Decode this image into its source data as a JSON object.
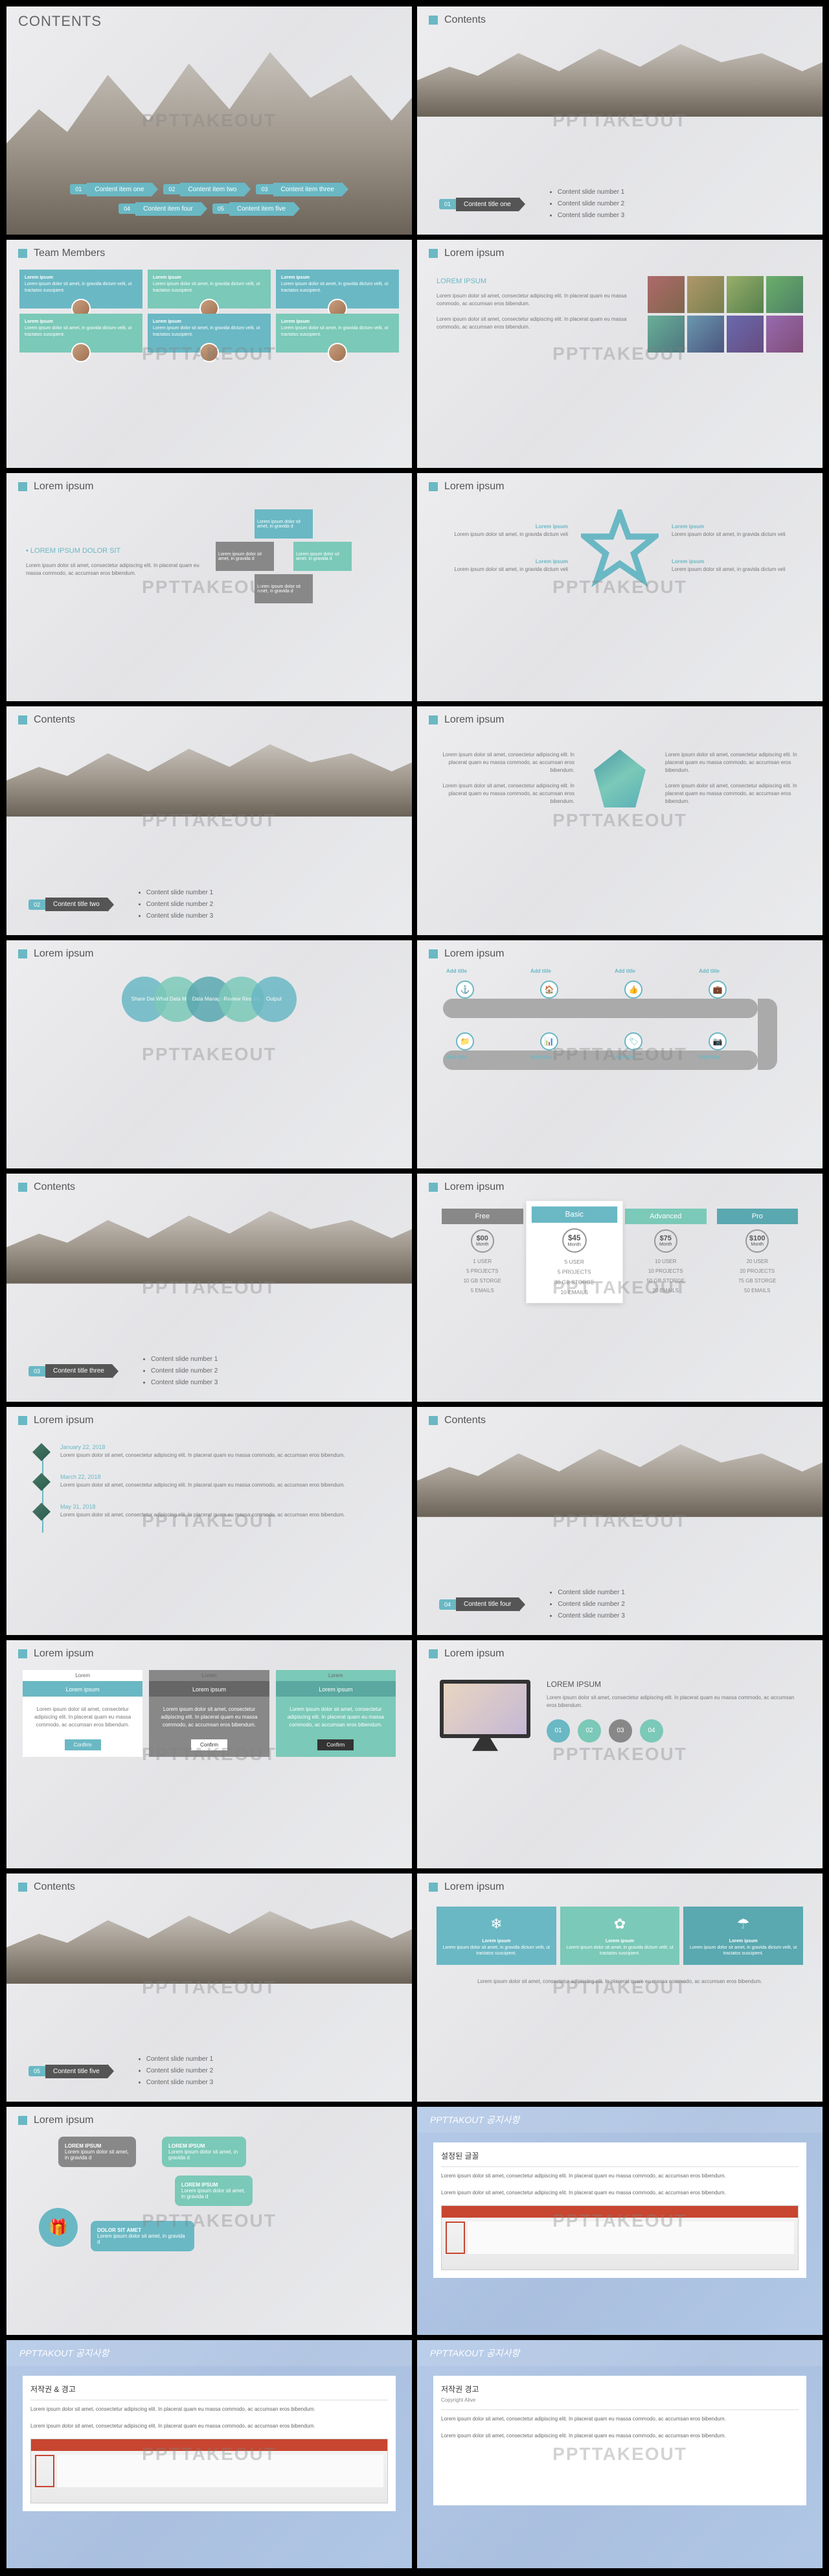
{
  "watermark": "PPTTAKEOUT",
  "colors": {
    "teal": "#6ab8c4",
    "mint": "#7bc9b8",
    "gray": "#888888",
    "dark": "#555555",
    "blue": "#5a8fd8"
  },
  "lorem_short": "Lorem ipsum dolor sit amet, consectetur adipiscing elit. In placerat quam eu massa commodo, ac accumsan eros bibendum.",
  "lorem_tiny": "Lorem ipsum dolor sit amet, in gravida dictum velit, ut tractatos suscipient.",
  "slides": [
    {
      "type": "contents_main",
      "title": "CONTENTS",
      "items": [
        {
          "num": "01",
          "label": "Content item one"
        },
        {
          "num": "02",
          "label": "Content item two"
        },
        {
          "num": "03",
          "label": "Content item three"
        },
        {
          "num": "04",
          "label": "Content item four"
        },
        {
          "num": "05",
          "label": "Content item five"
        }
      ]
    },
    {
      "type": "contents_section",
      "header": "Contents",
      "num": "01",
      "label": "Content title one",
      "bullets": [
        "Content slide number 1",
        "Content slide number 2",
        "Content slide number 3"
      ]
    },
    {
      "type": "team",
      "header": "Team Members",
      "cards": [
        {
          "title": "Lorem ipsum",
          "color": "#6ab8c4"
        },
        {
          "title": "Lorem ipsum",
          "color": "#7bc9b8"
        },
        {
          "title": "Lorem ipsum",
          "color": "#6ab8c4"
        },
        {
          "title": "Lorem ipsum",
          "color": "#7bc9b8"
        },
        {
          "title": "Lorem ipsum",
          "color": "#6ab8c4"
        },
        {
          "title": "Lorem ipsum",
          "color": "#7bc9b8"
        }
      ]
    },
    {
      "type": "photo_text",
      "header": "Lorem ipsum",
      "title": "LOREM IPSUM",
      "photo_count": 8
    },
    {
      "type": "arrows",
      "header": "Lorem ipsum",
      "title": "LOREM IPSUM DOLOR SIT"
    },
    {
      "type": "star",
      "header": "Lorem ipsum",
      "points": [
        "Lorem ipsum",
        "Lorem ipsum",
        "Lorem ipsum",
        "Lorem ipsum",
        "Lorem ipsum"
      ]
    },
    {
      "type": "contents_section",
      "header": "Contents",
      "num": "02",
      "label": "Content title two",
      "bullets": [
        "Content slide number 1",
        "Content slide number 2",
        "Content slide number 3"
      ]
    },
    {
      "type": "gem",
      "header": "Lorem ipsum"
    },
    {
      "type": "venn",
      "header": "Lorem ipsum",
      "nodes": [
        {
          "label": "Share Data",
          "color": "#6ab8c4"
        },
        {
          "label": "What Data Means",
          "color": "#7bc9b8"
        },
        {
          "label": "Data Managed",
          "color": "#5aa8b0"
        },
        {
          "label": "Review Results",
          "color": "#7bc9b8"
        },
        {
          "label": "Output",
          "color": "#6ab8c4"
        }
      ]
    },
    {
      "type": "roadmap",
      "header": "Lorem ipsum",
      "stops": [
        {
          "label": "Add title",
          "icon": "⚓"
        },
        {
          "label": "Add title",
          "icon": "🏠"
        },
        {
          "label": "Add title",
          "icon": "👍"
        },
        {
          "label": "Add title",
          "icon": "💼"
        },
        {
          "label": "Add title",
          "icon": "📷"
        },
        {
          "label": "Add title",
          "icon": "🏷"
        },
        {
          "label": "Add title",
          "icon": "📊"
        },
        {
          "label": "Add title",
          "icon": "📁"
        }
      ]
    },
    {
      "type": "contents_section",
      "header": "Contents",
      "num": "03",
      "label": "Content title three",
      "bullets": [
        "Content slide number 1",
        "Content slide number 2",
        "Content slide number 3"
      ]
    },
    {
      "type": "pricing",
      "header": "Lorem ipsum",
      "plans": [
        {
          "name": "Free",
          "price": "$00",
          "color": "#888888",
          "feats": [
            "1 USER",
            "5 PROJECTS",
            "10 GB STORGE",
            "5 EMAILS"
          ]
        },
        {
          "name": "Basic",
          "price": "$45",
          "color": "#6ab8c4",
          "feats": [
            "5 USER",
            "5 PROJECTS",
            "30 GB STORGE",
            "10 EMAILS"
          ],
          "featured": true
        },
        {
          "name": "Advanced",
          "price": "$75",
          "color": "#7bc9b8",
          "feats": [
            "10 USER",
            "10 PROJECTS",
            "50 GB STORGE",
            "20 EMAILS"
          ]
        },
        {
          "name": "Pro",
          "price": "$100",
          "color": "#5aa8b0",
          "feats": [
            "20 USER",
            "20 PROJECTS",
            "75 GB STORGE",
            "50 EMAILS"
          ]
        }
      ]
    },
    {
      "type": "timeline",
      "header": "Lorem ipsum",
      "events": [
        {
          "date": "January 22, 2018"
        },
        {
          "date": "March 22, 2018"
        },
        {
          "date": "May 31, 2018"
        }
      ]
    },
    {
      "type": "contents_section",
      "header": "Contents",
      "num": "04",
      "label": "Content title four",
      "bullets": [
        "Content slide number 1",
        "Content slide number 2",
        "Content slide number 3"
      ]
    },
    {
      "type": "tabs",
      "header": "Lorem ipsum",
      "cols": [
        {
          "top": "Lorem",
          "title": "Lorem ipsum",
          "bg": "#ffffff",
          "head": "#6ab8c4",
          "btn": "#6ab8c4",
          "btn_label": "Confirm"
        },
        {
          "top": "Lorem",
          "title": "Lorem ipsum",
          "bg": "#888888",
          "head": "#666666",
          "btn": "#ffffff",
          "btn_label": "Confirm"
        },
        {
          "top": "Lorem",
          "title": "Lorem ipsum",
          "bg": "#7bc9b8",
          "head": "#5aa8a0",
          "btn": "#333333",
          "btn_label": "Confirm"
        }
      ]
    },
    {
      "type": "monitor",
      "header": "Lorem ipsum",
      "title": "LOREM IPSUM",
      "dots": [
        "01",
        "02",
        "03",
        "04"
      ],
      "dot_colors": [
        "#6ab8c4",
        "#7bc9b8",
        "#888888",
        "#7bc9b8"
      ]
    },
    {
      "type": "contents_section",
      "header": "Contents",
      "num": "05",
      "label": "Content title five",
      "bullets": [
        "Content slide number 1",
        "Content slide number 2",
        "Content slide number 3"
      ]
    },
    {
      "type": "icon_boxes",
      "header": "Lorem ipsum",
      "boxes": [
        {
          "icon": "❄",
          "title": "Lorem ipsum",
          "color": "#6ab8c4"
        },
        {
          "icon": "✿",
          "title": "Lorem ipsum",
          "color": "#7bc9b8"
        },
        {
          "icon": "☂",
          "title": "Lorem ipsum",
          "color": "#5aa8b0"
        }
      ]
    },
    {
      "type": "bubbles",
      "header": "Lorem ipsum",
      "items": [
        {
          "label": "LOREM IPSUM",
          "color": "#888888"
        },
        {
          "label": "LOREM IPSUM",
          "color": "#7bc9b8"
        },
        {
          "label": "LOREM IPSUM",
          "color": "#7bc9b8"
        },
        {
          "label": "DOLOR SIT AMET",
          "color": "#6ab8c4"
        }
      ]
    },
    {
      "type": "notice",
      "header": "PPTTAKOUT 공지사항",
      "title": "설정된 글꼴"
    },
    {
      "type": "notice",
      "header": "PPTTAKOUT 공지사항",
      "title": "저작권 & 경고"
    },
    {
      "type": "notice",
      "header": "PPTTAKOUT 공지사항",
      "title": "저작권 경고",
      "subtitle": "Copyright Alive"
    }
  ]
}
